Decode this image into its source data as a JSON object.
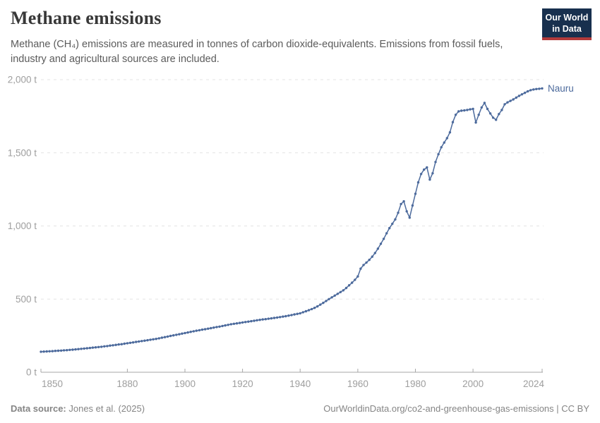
{
  "header": {
    "title": "Methane emissions",
    "subtitle_lines": [
      "Methane (CH₄) emissions are measured in tonnes of carbon dioxide-equivalents. Emissions from fossil fuels,",
      "industry and agricultural sources are included."
    ]
  },
  "logo": {
    "line1": "Our World",
    "line2": "in Data",
    "bg_color": "#18304e",
    "accent_color": "#b23b3b"
  },
  "footer": {
    "source_label": "Data source:",
    "source_value": " Jones et al. (2025)",
    "link_text": "OurWorldinData.org/co2-and-greenhouse-gas-emissions | CC BY"
  },
  "chart_data": {
    "type": "line",
    "title": "Methane emissions",
    "entity": "Nauru",
    "unit": "t",
    "x_range": [
      1850,
      2024
    ],
    "x_step": 1,
    "values": [
      140,
      141,
      142,
      143,
      144,
      146,
      147,
      148,
      150,
      151,
      153,
      154,
      156,
      158,
      160,
      162,
      164,
      166,
      168,
      170,
      172,
      174,
      177,
      179,
      182,
      184,
      187,
      190,
      192,
      195,
      198,
      201,
      204,
      207,
      210,
      213,
      216,
      219,
      222,
      225,
      228,
      232,
      236,
      240,
      244,
      248,
      252,
      256,
      260,
      264,
      268,
      272,
      276,
      280,
      284,
      287,
      291,
      294,
      298,
      301,
      305,
      309,
      312,
      316,
      320,
      324,
      328,
      331,
      334,
      337,
      340,
      343,
      346,
      349,
      352,
      355,
      358,
      361,
      363,
      366,
      368,
      371,
      374,
      377,
      380,
      383,
      387,
      391,
      395,
      399,
      403,
      410,
      417,
      424,
      432,
      440,
      450,
      462,
      474,
      487,
      500,
      512,
      524,
      536,
      548,
      560,
      576,
      594,
      612,
      632,
      655,
      708,
      733,
      750,
      768,
      790,
      815,
      845,
      878,
      912,
      950,
      985,
      1015,
      1045,
      1090,
      1150,
      1168,
      1100,
      1057,
      1140,
      1220,
      1298,
      1355,
      1385,
      1400,
      1317,
      1360,
      1437,
      1490,
      1538,
      1570,
      1600,
      1640,
      1710,
      1760,
      1783,
      1788,
      1790,
      1793,
      1797,
      1800,
      1707,
      1760,
      1810,
      1841,
      1800,
      1769,
      1740,
      1726,
      1765,
      1793,
      1832,
      1845,
      1855,
      1865,
      1877,
      1889,
      1900,
      1910,
      1920,
      1928,
      1933,
      1936,
      1938,
      1940
    ],
    "ylim": [
      0,
      2000
    ],
    "yticks": [
      0,
      500,
      1000,
      1500,
      2000
    ],
    "ytick_labels": [
      "0 t",
      "500 t",
      "1,000 t",
      "1,500 t",
      "2,000 t"
    ],
    "xticks": [
      1850,
      1880,
      1900,
      1920,
      1940,
      1960,
      1980,
      2000,
      2024
    ],
    "series_color": "#4c6a9c",
    "grid": true,
    "grid_color": "#e3e3e3",
    "axis_color": "#a7a7a7",
    "point_markers": true,
    "legend_position": "end-of-line"
  }
}
